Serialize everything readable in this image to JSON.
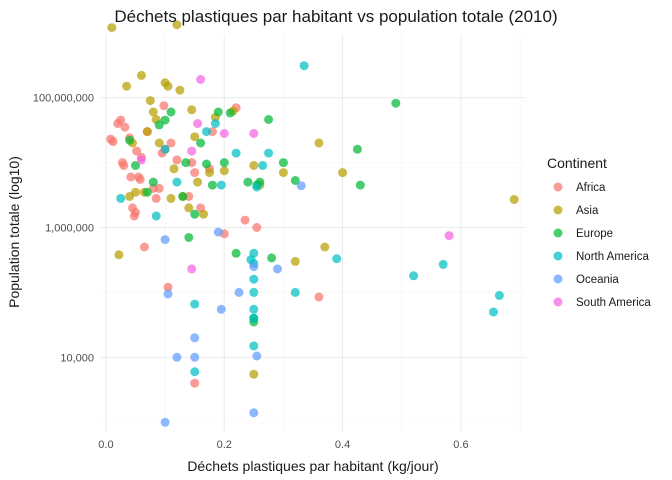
{
  "chart_data": {
    "type": "scatter",
    "title": "Déchets plastiques par habitant vs population totale (2010)",
    "xlabel": "Déchets plastiques par habitant (kg/jour)",
    "ylabel": "Population totale (log10)",
    "xlim": [
      -0.01,
      0.71
    ],
    "ylim_log10": [
      2.85,
      8.98
    ],
    "y_scale": "log10",
    "x_ticks": [
      {
        "value": 0.0,
        "label": "0.0"
      },
      {
        "value": 0.2,
        "label": "0.2"
      },
      {
        "value": 0.4,
        "label": "0.4"
      },
      {
        "value": 0.6,
        "label": "0.6"
      }
    ],
    "y_ticks": [
      {
        "value": 10000,
        "label": "10,000"
      },
      {
        "value": 1000000,
        "label": "1,000,000"
      },
      {
        "value": 100000000,
        "label": "100,000,000"
      }
    ],
    "grid": true,
    "legend": {
      "title": "Continent",
      "position": "right"
    },
    "series": [
      {
        "name": "Africa",
        "color": "#F8766D",
        "points": [
          [
            0.008,
            23000000
          ],
          [
            0.012,
            21000000
          ],
          [
            0.02,
            40000000
          ],
          [
            0.025,
            45000000
          ],
          [
            0.028,
            10000000
          ],
          [
            0.03,
            9000000
          ],
          [
            0.032,
            35000000
          ],
          [
            0.04,
            24000000
          ],
          [
            0.042,
            6000000
          ],
          [
            0.045,
            2000000
          ],
          [
            0.048,
            1500000
          ],
          [
            0.05,
            1700000
          ],
          [
            0.052,
            15000000
          ],
          [
            0.055,
            6000000
          ],
          [
            0.058,
            5500000
          ],
          [
            0.06,
            12000000
          ],
          [
            0.065,
            500000
          ],
          [
            0.07,
            30000000
          ],
          [
            0.08,
            4000000
          ],
          [
            0.085,
            2800000
          ],
          [
            0.09,
            4000000
          ],
          [
            0.095,
            14000000
          ],
          [
            0.098,
            75000000
          ],
          [
            0.1,
            16000000
          ],
          [
            0.105,
            120000
          ],
          [
            0.11,
            20000000
          ],
          [
            0.12,
            11000000
          ],
          [
            0.14,
            3000000
          ],
          [
            0.145,
            10000000
          ],
          [
            0.15,
            7000000
          ],
          [
            0.15,
            4000
          ],
          [
            0.16,
            2000000
          ],
          [
            0.175,
            8000000
          ],
          [
            0.18,
            30000000
          ],
          [
            0.2,
            800000
          ],
          [
            0.22,
            70000000
          ],
          [
            0.235,
            1300000
          ],
          [
            0.255,
            1000000
          ],
          [
            0.36,
            85000
          ]
        ]
      },
      {
        "name": "Asia",
        "color": "#B79F00",
        "points": [
          [
            0.01,
            1200000000
          ],
          [
            0.022,
            380000
          ],
          [
            0.035,
            150000000
          ],
          [
            0.04,
            3000000
          ],
          [
            0.045,
            20000000
          ],
          [
            0.05,
            3500000
          ],
          [
            0.06,
            220000000
          ],
          [
            0.065,
            3500000
          ],
          [
            0.07,
            30000000
          ],
          [
            0.075,
            90000000
          ],
          [
            0.08,
            60000000
          ],
          [
            0.085,
            46000000
          ],
          [
            0.09,
            20000000
          ],
          [
            0.1,
            170000000
          ],
          [
            0.105,
            150000000
          ],
          [
            0.11,
            2800000
          ],
          [
            0.115,
            8000000
          ],
          [
            0.12,
            1330000000
          ],
          [
            0.125,
            130000000
          ],
          [
            0.13,
            3000000
          ],
          [
            0.14,
            2000000
          ],
          [
            0.145,
            65000000
          ],
          [
            0.15,
            25000000
          ],
          [
            0.155,
            5000000
          ],
          [
            0.165,
            1600000
          ],
          [
            0.175,
            7000000
          ],
          [
            0.185,
            50000000
          ],
          [
            0.2,
            7500000
          ],
          [
            0.215,
            62000000
          ],
          [
            0.25,
            9000000
          ],
          [
            0.25,
            5500
          ],
          [
            0.26,
            4500000
          ],
          [
            0.3,
            7000000
          ],
          [
            0.32,
            300000
          ],
          [
            0.36,
            20000000
          ],
          [
            0.37,
            500000
          ],
          [
            0.4,
            7000000
          ],
          [
            0.69,
            2700000
          ]
        ]
      },
      {
        "name": "Europe",
        "color": "#00BA38",
        "points": [
          [
            0.04,
            22000000
          ],
          [
            0.05,
            9000000
          ],
          [
            0.07,
            3500000
          ],
          [
            0.08,
            5000000
          ],
          [
            0.09,
            38000000
          ],
          [
            0.1,
            45000000
          ],
          [
            0.11,
            60000000
          ],
          [
            0.13,
            3000000
          ],
          [
            0.135,
            10000000
          ],
          [
            0.14,
            700000
          ],
          [
            0.15,
            1600000
          ],
          [
            0.16,
            20000000
          ],
          [
            0.17,
            9500000
          ],
          [
            0.18,
            4500000
          ],
          [
            0.19,
            60000000
          ],
          [
            0.2,
            10000000
          ],
          [
            0.21,
            58000000
          ],
          [
            0.22,
            400000
          ],
          [
            0.24,
            5000000
          ],
          [
            0.25,
            40000
          ],
          [
            0.25,
            35000
          ],
          [
            0.255,
            4500000
          ],
          [
            0.26,
            5000000
          ],
          [
            0.275,
            46000000
          ],
          [
            0.28,
            340000
          ],
          [
            0.3,
            10000000
          ],
          [
            0.32,
            5300000
          ],
          [
            0.425,
            16000000
          ],
          [
            0.43,
            4500000
          ],
          [
            0.49,
            82000000
          ]
        ]
      },
      {
        "name": "North America",
        "color": "#00BFC4",
        "points": [
          [
            0.025,
            2800000
          ],
          [
            0.085,
            1500000
          ],
          [
            0.1,
            16000000
          ],
          [
            0.12,
            5000000
          ],
          [
            0.15,
            66000
          ],
          [
            0.15,
            6000
          ],
          [
            0.17,
            30000000
          ],
          [
            0.185,
            40000000
          ],
          [
            0.195,
            4500000
          ],
          [
            0.22,
            14000000
          ],
          [
            0.245,
            320000
          ],
          [
            0.25,
            400000
          ],
          [
            0.25,
            280000
          ],
          [
            0.25,
            160000
          ],
          [
            0.25,
            100000
          ],
          [
            0.25,
            55000
          ],
          [
            0.25,
            40000
          ],
          [
            0.25,
            15000
          ],
          [
            0.255,
            4200000
          ],
          [
            0.265,
            9000000
          ],
          [
            0.275,
            14000000
          ],
          [
            0.32,
            100000
          ],
          [
            0.335,
            310000000
          ],
          [
            0.39,
            330000
          ],
          [
            0.52,
            180000
          ],
          [
            0.57,
            270000
          ],
          [
            0.655,
            50000
          ],
          [
            0.665,
            90000
          ]
        ]
      },
      {
        "name": "Oceania",
        "color": "#619CFF",
        "points": [
          [
            0.1,
            650000
          ],
          [
            0.1,
            1000
          ],
          [
            0.105,
            95000
          ],
          [
            0.12,
            10000
          ],
          [
            0.15,
            20000
          ],
          [
            0.15,
            10000
          ],
          [
            0.19,
            850000
          ],
          [
            0.195,
            55000
          ],
          [
            0.225,
            100000
          ],
          [
            0.25,
            250000
          ],
          [
            0.25,
            1400
          ],
          [
            0.255,
            10500
          ],
          [
            0.29,
            230000
          ],
          [
            0.33,
            4400000
          ]
        ]
      },
      {
        "name": "South America",
        "color": "#F564E3",
        "points": [
          [
            0.06,
            11000000
          ],
          [
            0.145,
            15000000
          ],
          [
            0.145,
            230000
          ],
          [
            0.155,
            40000000
          ],
          [
            0.16,
            190000000
          ],
          [
            0.2,
            28000000
          ],
          [
            0.25,
            28000000
          ],
          [
            0.58,
            750000
          ]
        ]
      }
    ]
  }
}
